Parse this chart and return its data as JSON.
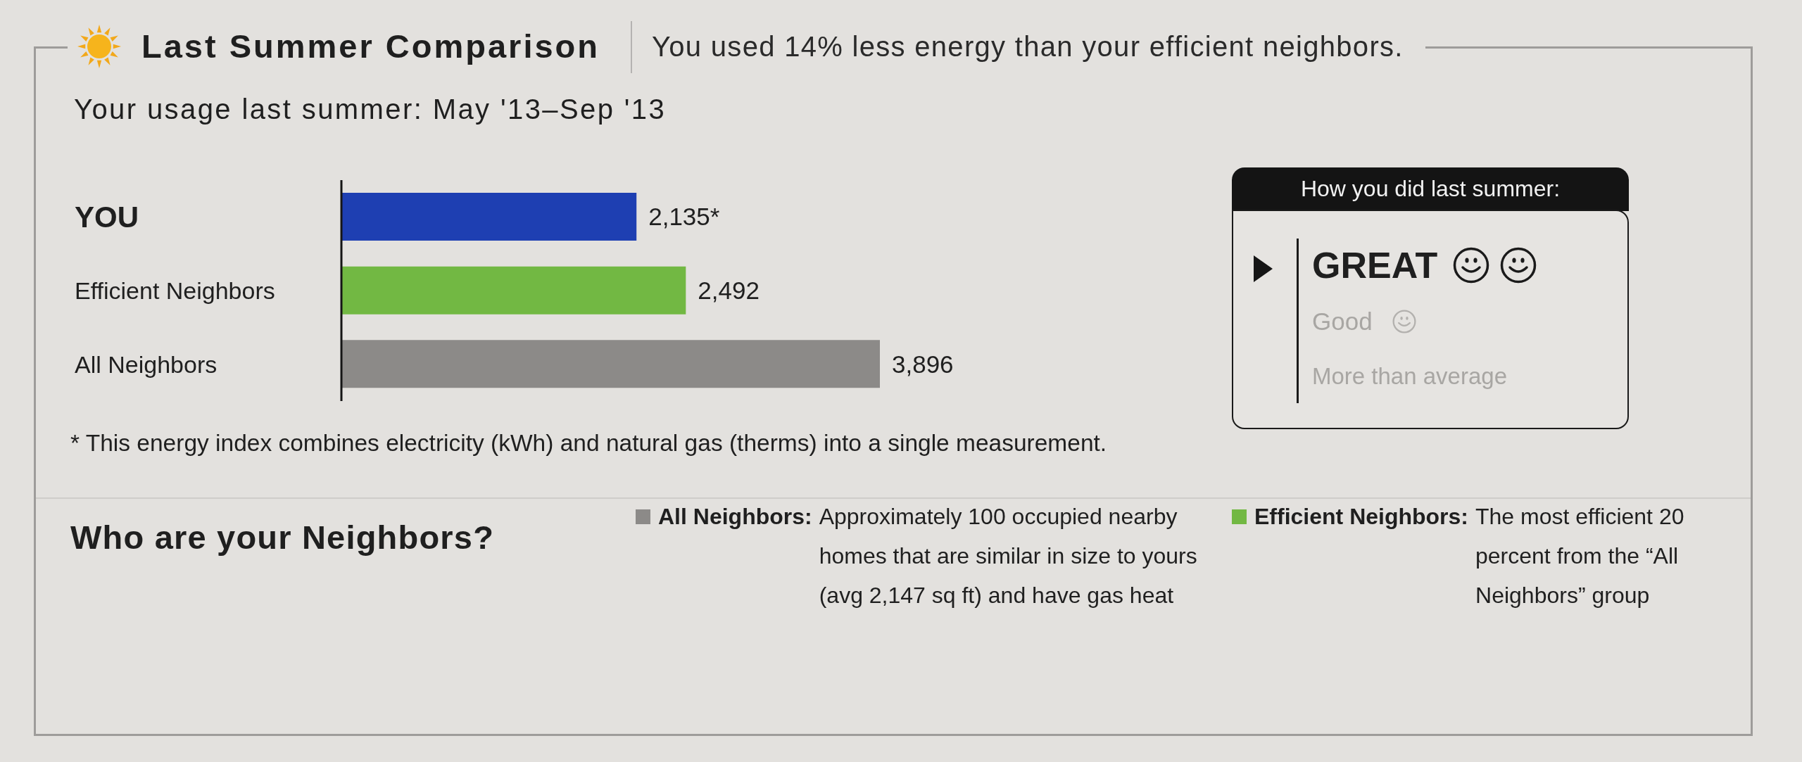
{
  "chart_data": {
    "type": "bar",
    "orientation": "horizontal",
    "title": "Last Summer Comparison",
    "subtitle": "You used 14% less energy than your efficient neighbors.",
    "categories": [
      "YOU",
      "Efficient Neighbors",
      "All Neighbors"
    ],
    "values": [
      2135,
      2492,
      3896
    ],
    "colors": [
      "#1e3fb2",
      "#72b843",
      "#8c8a88"
    ],
    "value_labels": [
      "2,135*",
      "2,492",
      "3,896"
    ],
    "annotations": [
      "Your usage last summer: May '13–Sep '13",
      "* This energy index combines electricity (kWh) and natural gas (therms) into a single measurement.",
      "Who are your Neighbors?",
      "All Neighbors:",
      "Approximately 100 occupied nearby homes that are similar in size to yours (avg 2,147 sq ft) and have gas heat",
      "Efficient Neighbors:",
      "The most efficient 20 percent from the “All Neighbors” group",
      "How you did last summer:",
      "GREAT",
      "Good",
      "More than average"
    ]
  }
}
